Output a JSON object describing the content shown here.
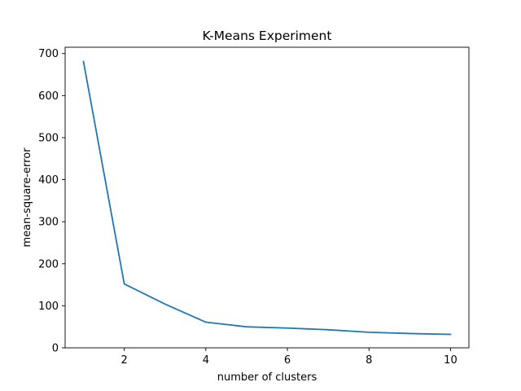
{
  "chart_data": {
    "type": "line",
    "title": "K-Means Experiment",
    "xlabel": "number of clusters",
    "ylabel": "mean-square-error",
    "x": [
      1,
      2,
      3,
      4,
      5,
      6,
      7,
      8,
      9,
      10
    ],
    "series": [
      {
        "values": [
          681,
          152,
          104,
          61,
          50,
          47,
          43,
          37,
          34,
          32
        ],
        "color": "#1f77b4"
      }
    ],
    "xlim": [
      0.55,
      10.45
    ],
    "ylim": [
      0,
      715
    ],
    "xticks": [
      2,
      4,
      6,
      8,
      10
    ],
    "xtick_labels": [
      "2",
      "4",
      "6",
      "8",
      "10"
    ],
    "yticks": [
      0,
      100,
      200,
      300,
      400,
      500,
      600,
      700
    ],
    "ytick_labels": [
      "0",
      "100",
      "200",
      "300",
      "400",
      "500",
      "600",
      "700"
    ],
    "grid": false,
    "legend": "none"
  }
}
